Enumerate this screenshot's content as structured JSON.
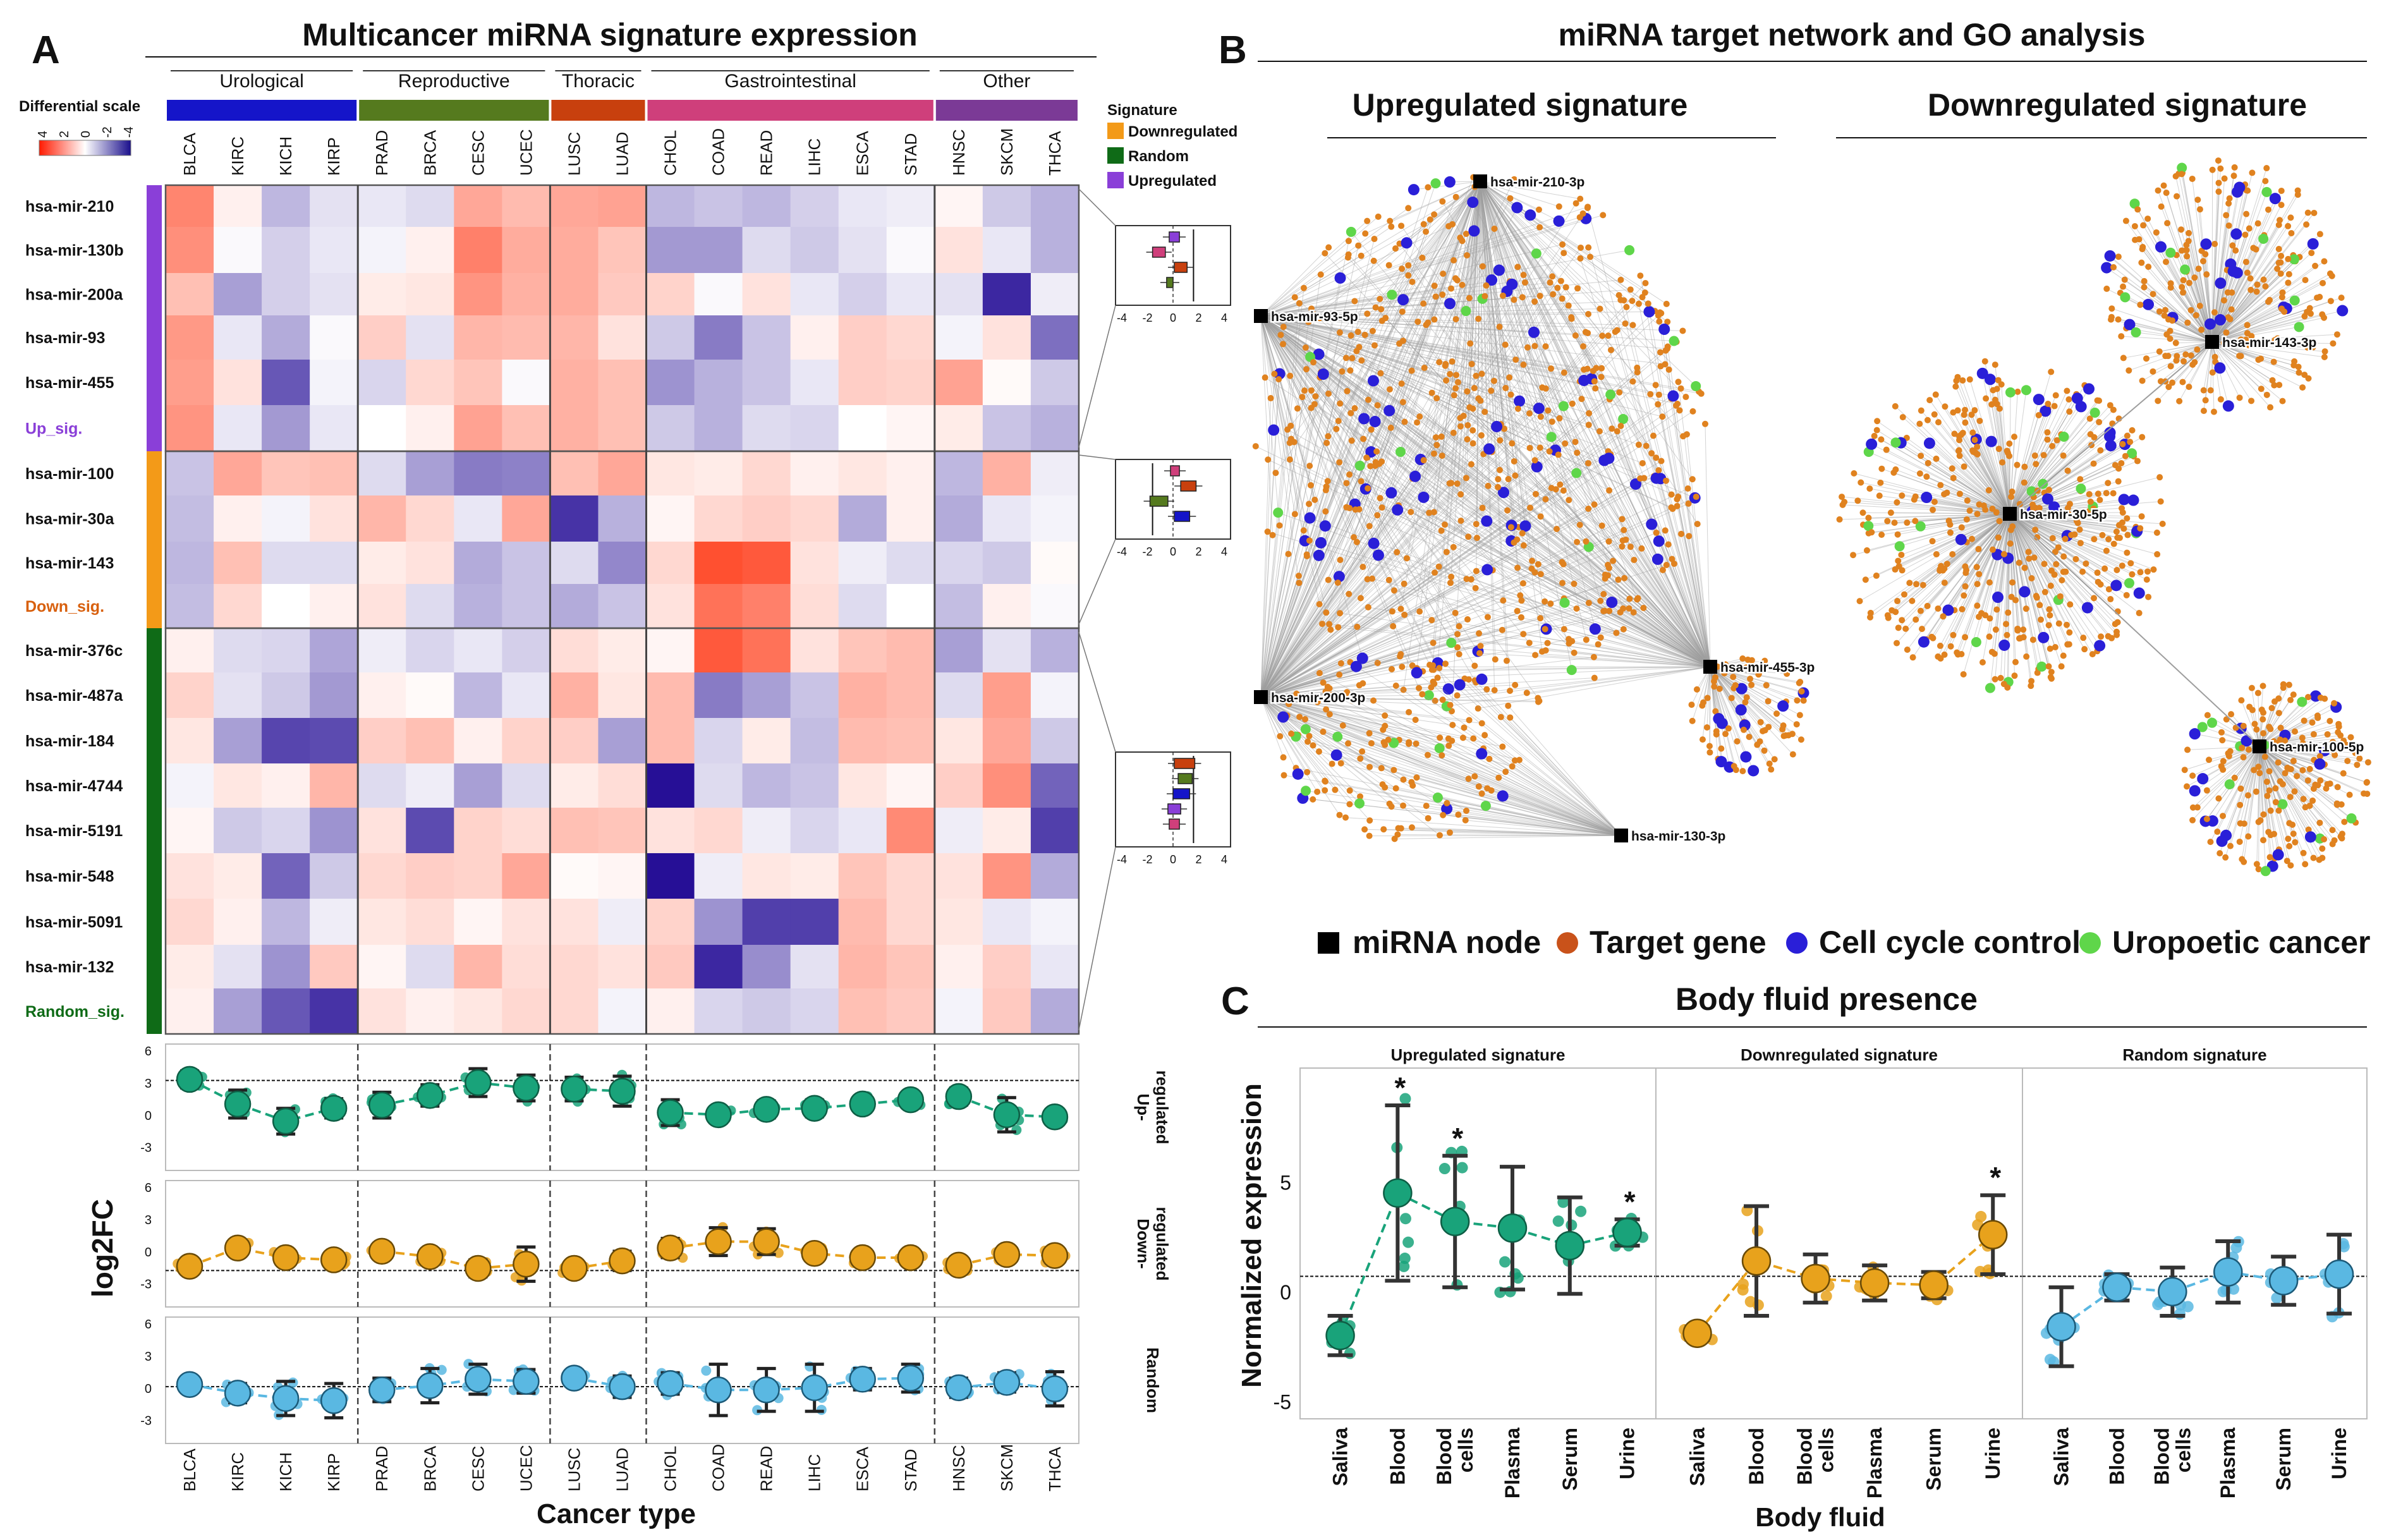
{
  "panels": {
    "a": {
      "letter": "A",
      "title": "Multicancer miRNA signature expression"
    },
    "b": {
      "letter": "B",
      "title": "miRNA target network and GO analysis",
      "up_title": "Upregulated signature",
      "down_title": "Downregulated signature"
    },
    "c": {
      "letter": "C",
      "title": "Body fluid presence"
    }
  },
  "colors": {
    "urological": "#1515c9",
    "reproductive": "#557a1e",
    "thoracic": "#c8400e",
    "gastrointestinal": "#cf3f7b",
    "other": "#7b3a96",
    "downregulated": "#f39a18",
    "random": "#0f6b17",
    "upregulated": "#8a3fd8",
    "up_point": "#19a37a",
    "down_point": "#e8a21c",
    "random_point": "#5ab8e2",
    "target_gene": "#e0821f",
    "cell_cycle": "#2a1fd8",
    "uropoetic": "#5fd64a"
  },
  "scale_legend": {
    "title": "Differential scale",
    "ticks": [
      "4",
      "2",
      "0",
      "-2",
      "-4"
    ]
  },
  "signature_legend": {
    "title": "Signature",
    "items": [
      "Downregulated",
      "Random",
      "Upregulated"
    ]
  },
  "groups": [
    {
      "label": "Urological",
      "n": 4,
      "color_key": "urological"
    },
    {
      "label": "Reproductive",
      "n": 4,
      "color_key": "reproductive"
    },
    {
      "label": "Thoracic",
      "n": 2,
      "color_key": "thoracic"
    },
    {
      "label": "Gastrointestinal",
      "n": 6,
      "color_key": "gastrointestinal"
    },
    {
      "label": "Other",
      "n": 3,
      "color_key": "other"
    }
  ],
  "cancers": [
    "BLCA",
    "KIRC",
    "KICH",
    "KIRP",
    "PRAD",
    "BRCA",
    "CESC",
    "UCEC",
    "LUSC",
    "LUAD",
    "CHOL",
    "COAD",
    "READ",
    "LIHC",
    "ESCA",
    "STAD",
    "HNSC",
    "SKCM",
    "THCA"
  ],
  "signature_blocks": [
    {
      "name": "Up_sig.",
      "color_key": "upregulated",
      "mirnas": [
        "hsa-mir-210",
        "hsa-mir-130b",
        "hsa-mir-200a",
        "hsa-mir-93",
        "hsa-mir-455"
      ]
    },
    {
      "name": "Down_sig.",
      "color_key": "downregulated",
      "mirnas": [
        "hsa-mir-100",
        "hsa-mir-30a",
        "hsa-mir-143"
      ]
    },
    {
      "name": "Random_sig.",
      "color_key": "random",
      "mirnas": [
        "hsa-mir-376c",
        "hsa-mir-487a",
        "hsa-mir-184",
        "hsa-mir-4744",
        "hsa-mir-5191",
        "hsa-mir-548",
        "hsa-mir-5091",
        "hsa-mir-132"
      ]
    }
  ],
  "chart_data": [
    {
      "type": "heatmap",
      "title": "Multicancer miRNA signature expression",
      "color_scale": {
        "min": -4,
        "max": 4,
        "positive": "red",
        "negative": "blue"
      },
      "rows": [
        "hsa-mir-210",
        "hsa-mir-130b",
        "hsa-mir-200a",
        "hsa-mir-93",
        "hsa-mir-455",
        "Up_sig.",
        "hsa-mir-100",
        "hsa-mir-30a",
        "hsa-mir-143",
        "Down_sig.",
        "hsa-mir-376c",
        "hsa-mir-487a",
        "hsa-mir-184",
        "hsa-mir-4744",
        "hsa-mir-5191",
        "hsa-mir-548",
        "hsa-mir-5091",
        "hsa-mir-132",
        "Random_sig."
      ],
      "columns": [
        "BLCA",
        "KIRC",
        "KICH",
        "KIRP",
        "PRAD",
        "BRCA",
        "CESC",
        "UCEC",
        "LUSC",
        "LUAD",
        "CHOL",
        "COAD",
        "READ",
        "LIHC",
        "ESCA",
        "STAD",
        "HNSC",
        "SKCM",
        "THCA"
      ],
      "values": [
        [
          2.5,
          0.3,
          -1.2,
          -0.5,
          -0.4,
          -0.6,
          1.8,
          1.4,
          1.8,
          1.9,
          -1.2,
          -1.0,
          -1.2,
          -0.8,
          -0.4,
          -0.3,
          0.2,
          -0.9,
          -1.3
        ],
        [
          2.3,
          -0.1,
          -0.8,
          -0.4,
          -0.2,
          0.3,
          2.6,
          1.7,
          1.7,
          1.2,
          -1.7,
          -1.7,
          -0.6,
          -0.9,
          -0.5,
          -0.1,
          0.6,
          -0.4,
          -1.3
        ],
        [
          1.3,
          -1.6,
          -0.8,
          -0.5,
          0.4,
          0.5,
          2.2,
          1.6,
          1.7,
          1.1,
          0.9,
          -0.1,
          0.6,
          -0.4,
          -0.8,
          -0.4,
          -0.5,
          -3.6,
          -0.3
        ],
        [
          2.1,
          -0.4,
          -1.4,
          -0.1,
          1.0,
          -0.5,
          1.5,
          1.4,
          1.5,
          0.6,
          -0.9,
          -2.2,
          -1.0,
          0.3,
          1.0,
          0.8,
          -0.2,
          0.6,
          -2.4
        ],
        [
          2.0,
          0.6,
          -2.8,
          -0.2,
          -0.7,
          0.8,
          1.2,
          -0.1,
          1.6,
          1.3,
          -1.8,
          -1.3,
          -1.0,
          -0.4,
          1.0,
          0.9,
          1.9,
          0.1,
          -0.9
        ],
        [
          2.2,
          -0.4,
          -1.7,
          -0.4,
          0.0,
          0.3,
          1.9,
          1.3,
          1.6,
          1.3,
          -0.9,
          -1.3,
          -0.6,
          -0.7,
          0.0,
          0.2,
          0.4,
          -1.0,
          -1.3
        ],
        [
          -1.0,
          1.8,
          1.2,
          1.3,
          -0.6,
          -1.6,
          -2.2,
          -2.1,
          1.3,
          1.8,
          0.5,
          0.4,
          0.8,
          0.3,
          0.5,
          0.3,
          -1.2,
          1.6,
          -0.3
        ],
        [
          -1.1,
          0.3,
          -0.2,
          0.6,
          1.5,
          0.8,
          -0.4,
          1.8,
          -3.4,
          -1.3,
          0.2,
          0.8,
          1.0,
          0.8,
          -1.4,
          0.3,
          -1.4,
          -0.4,
          -0.2
        ],
        [
          -1.2,
          1.3,
          -0.6,
          -0.6,
          0.4,
          0.6,
          -1.4,
          -1.0,
          -0.6,
          -2.0,
          0.8,
          3.6,
          3.4,
          0.6,
          -0.3,
          -0.6,
          -0.7,
          -0.9,
          0.1
        ],
        [
          -1.1,
          0.8,
          0.0,
          0.3,
          0.6,
          -0.6,
          -1.3,
          -1.0,
          -1.4,
          -1.0,
          0.6,
          2.9,
          2.6,
          0.7,
          -0.6,
          0.0,
          -1.1,
          0.3,
          -0.1
        ],
        [
          0.3,
          -0.6,
          -0.7,
          -1.5,
          -0.3,
          -0.7,
          -0.4,
          -0.8,
          0.7,
          0.4,
          0.2,
          3.4,
          2.9,
          0.6,
          1.2,
          1.4,
          -1.6,
          -0.5,
          -1.3
        ],
        [
          0.9,
          -0.5,
          -0.9,
          -1.7,
          0.3,
          0.1,
          -1.2,
          -0.4,
          1.6,
          0.5,
          1.4,
          -2.2,
          -1.6,
          -1.0,
          1.6,
          1.4,
          -0.6,
          2.0,
          -0.2
        ],
        [
          0.5,
          -1.6,
          -3.1,
          -3.0,
          1.0,
          1.3,
          0.3,
          0.9,
          1.0,
          -1.6,
          1.4,
          -0.7,
          0.4,
          -1.1,
          1.4,
          1.3,
          0.5,
          1.8,
          -0.9
        ],
        [
          -0.2,
          0.5,
          0.3,
          1.5,
          -0.6,
          -0.3,
          -1.6,
          -0.6,
          0.4,
          0.7,
          -4.0,
          -0.6,
          -1.2,
          -1.0,
          0.5,
          0.2,
          1.0,
          2.3,
          -2.6
        ],
        [
          0.2,
          -0.9,
          -0.7,
          -1.8,
          0.6,
          -3.0,
          0.9,
          0.7,
          1.3,
          1.2,
          0.6,
          0.8,
          -0.3,
          -0.7,
          -0.4,
          2.4,
          -0.3,
          0.4,
          -3.2
        ],
        [
          0.6,
          0.4,
          -2.6,
          -0.9,
          0.8,
          1.0,
          0.9,
          1.8,
          0.1,
          0.2,
          -4.0,
          -0.3,
          0.5,
          0.4,
          1.2,
          0.8,
          0.6,
          2.2,
          -1.4
        ],
        [
          0.8,
          0.3,
          -1.2,
          -0.3,
          0.5,
          0.7,
          0.2,
          0.6,
          0.6,
          -0.3,
          0.9,
          -1.8,
          -3.2,
          -3.2,
          1.4,
          0.8,
          0.5,
          -0.4,
          -0.2
        ],
        [
          0.4,
          -0.5,
          -1.8,
          1.1,
          0.2,
          -0.6,
          1.5,
          0.7,
          0.8,
          0.6,
          1.1,
          -3.6,
          -1.9,
          -0.5,
          1.5,
          1.2,
          0.3,
          1.0,
          -0.4
        ],
        [
          0.3,
          -1.6,
          -2.8,
          -3.4,
          0.6,
          0.3,
          0.5,
          0.8,
          0.8,
          -0.2,
          0.3,
          -0.7,
          -0.9,
          -0.7,
          1.3,
          1.1,
          -0.2,
          1.1,
          -1.4
        ]
      ]
    },
    {
      "type": "scatter",
      "title": "log2FC per cancer type",
      "ylabel": "log2FC",
      "xlabel": "Cancer type",
      "yticks": [
        6,
        3,
        0,
        -3
      ],
      "categories": [
        "BLCA",
        "KIRC",
        "KICH",
        "KIRP",
        "PRAD",
        "BRCA",
        "CESC",
        "UCEC",
        "LUSC",
        "LUAD",
        "CHOL",
        "COAD",
        "READ",
        "LIHC",
        "ESCA",
        "STAD",
        "HNSC",
        "SKCM",
        "THCA"
      ],
      "series": [
        {
          "name": "Up-regulated",
          "ref": 3.2,
          "means": [
            3.3,
            1.0,
            -0.6,
            0.6,
            0.9,
            1.8,
            3.0,
            2.5,
            2.4,
            2.2,
            0.2,
            0.0,
            0.5,
            0.6,
            1.0,
            1.4,
            1.7,
            0.0,
            -0.2
          ],
          "err": [
            0.8,
            1.3,
            1.2,
            0.9,
            1.2,
            1.0,
            1.3,
            1.2,
            1.1,
            1.4,
            1.2,
            0.6,
            0.8,
            0.8,
            0.7,
            0.6,
            0.8,
            1.6,
            0.7
          ]
        },
        {
          "name": "Down-regulated",
          "ref": -1.8,
          "means": [
            -1.4,
            0.3,
            -0.6,
            -0.8,
            0.0,
            -0.5,
            -1.6,
            -1.2,
            -1.6,
            -0.9,
            0.3,
            0.9,
            0.9,
            -0.2,
            -0.6,
            -0.6,
            -1.3,
            -0.3,
            -0.4
          ],
          "err": [
            0.4,
            0.5,
            0.5,
            0.6,
            0.6,
            0.7,
            0.8,
            1.6,
            0.6,
            0.9,
            0.9,
            1.3,
            1.2,
            0.5,
            0.6,
            0.5,
            0.5,
            0.6,
            0.6
          ]
        },
        {
          "name": "Random",
          "ref": 0.1,
          "means": [
            0.3,
            -0.5,
            -1.0,
            -1.2,
            -0.2,
            0.2,
            0.8,
            0.6,
            0.9,
            0.1,
            0.4,
            -0.2,
            -0.2,
            0.0,
            0.8,
            0.9,
            0.0,
            0.5,
            -0.1
          ],
          "err": [
            0.5,
            0.9,
            1.6,
            1.6,
            1.1,
            1.6,
            1.4,
            1.1,
            0.6,
            1.0,
            1.0,
            2.4,
            2.0,
            2.2,
            1.0,
            1.3,
            0.9,
            0.9,
            1.6
          ]
        }
      ],
      "row_labels": [
        [
          "Up-",
          "regulated"
        ],
        [
          "Down-",
          "regulated"
        ],
        [
          "Random"
        ]
      ]
    },
    {
      "type": "scatter",
      "title": "Body fluid presence",
      "ylabel": "Normalized expression",
      "xlabel": "Body fluid",
      "yticks": [
        5,
        0,
        -5
      ],
      "ylim": [
        -5.8,
        10.2
      ],
      "ref": 0.7,
      "fluids": [
        "Saliva",
        "Blood",
        "Blood cells",
        "Plasma",
        "Serum",
        "Urine"
      ],
      "panels": [
        {
          "name": "Upregulated signature",
          "color_key": "up_point",
          "means": [
            -2.0,
            4.5,
            3.2,
            2.9,
            2.1,
            2.7
          ],
          "err": [
            0.9,
            4.0,
            3.0,
            2.8,
            2.2,
            0.6
          ],
          "significant": [
            false,
            true,
            true,
            false,
            false,
            true
          ]
        },
        {
          "name": "Downregulated signature",
          "color_key": "down_point",
          "means": [
            -1.9,
            1.4,
            0.6,
            0.4,
            0.3,
            2.6
          ],
          "err": [
            0.3,
            2.5,
            1.1,
            0.8,
            0.6,
            1.8
          ],
          "significant": [
            false,
            false,
            false,
            false,
            false,
            true
          ]
        },
        {
          "name": "Random signature",
          "color_key": "random_point",
          "means": [
            -1.6,
            0.2,
            0.0,
            0.9,
            0.5,
            0.8
          ],
          "err": [
            1.8,
            0.6,
            1.1,
            1.4,
            1.1,
            1.8
          ],
          "significant": [
            false,
            false,
            false,
            false,
            false,
            false
          ]
        }
      ]
    },
    {
      "type": "network",
      "title": "miRNA target network and GO analysis",
      "subnetworks": [
        {
          "name": "Upregulated signature",
          "nodes": [
            "hsa-mir-210-3p",
            "hsa-mir-93-5p",
            "hsa-mir-200-3p",
            "hsa-mir-455-3p",
            "hsa-mir-130-3p"
          ]
        },
        {
          "name": "Downregulated signature",
          "nodes": [
            "hsa-mir-143-3p",
            "hsa-mir-30-5p",
            "hsa-mir-100-5p"
          ]
        }
      ],
      "legend": [
        "miRNA node",
        "Target gene",
        "Cell cycle control",
        "Uropoetic cancer"
      ]
    }
  ],
  "boxplot_axis_ticks": [
    "-4",
    "-2",
    "0",
    "2",
    "4"
  ]
}
